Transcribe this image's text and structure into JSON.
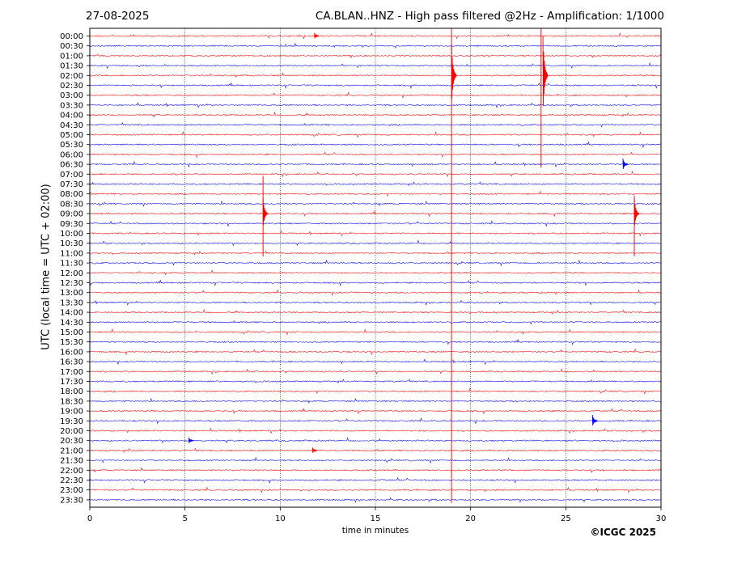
{
  "header": {
    "date": "27-08-2025",
    "title": "CA.BLAN..HNZ - High pass filtered @2Hz - Amplification: 1/1000"
  },
  "copyright": "©ICGC 2025",
  "colors": {
    "even_trace": "#ff0000",
    "odd_trace": "#0000ff",
    "gridline": "#000000"
  },
  "chart_data": {
    "type": "line",
    "title": "CA.BLAN..HNZ - High pass filtered @2Hz - Amplification: 1/1000",
    "xlabel": "time in minutes",
    "ylabel": "UTC (local time = UTC + 02:00)",
    "xlim": [
      0,
      30
    ],
    "x_ticks": [
      0,
      5,
      10,
      15,
      20,
      25,
      30
    ],
    "grid": "vertical dotted at 5-minute intervals",
    "rows": [
      "00:00",
      "00:30",
      "01:00",
      "01:30",
      "02:00",
      "02:30",
      "03:00",
      "03:30",
      "04:00",
      "04:30",
      "05:00",
      "05:30",
      "06:00",
      "06:30",
      "07:00",
      "07:30",
      "08:00",
      "08:30",
      "09:00",
      "09:30",
      "10:00",
      "10:30",
      "11:00",
      "11:30",
      "12:00",
      "12:30",
      "13:00",
      "13:30",
      "14:00",
      "14:30",
      "15:00",
      "15:30",
      "16:00",
      "16:30",
      "17:00",
      "17:30",
      "18:00",
      "18:30",
      "19:00",
      "19:30",
      "20:00",
      "20:30",
      "21:00",
      "21:30",
      "22:00",
      "22:30",
      "23:00",
      "23:30"
    ],
    "row_colors": "alternating red (even rows) and blue (odd rows)",
    "notable_events": [
      {
        "row": "09:00",
        "minute": 9.1,
        "amplitude_rows": 1.5
      },
      {
        "row": "02:00",
        "minute": 19.0,
        "amplitude_rows": 3
      },
      {
        "row": "02:00",
        "minute": 23.8,
        "amplitude_rows": 4
      },
      {
        "row": "06:30",
        "minute": 28.0,
        "amplitude_rows": 0.6
      },
      {
        "row": "09:00",
        "minute": 28.6,
        "amplitude_rows": 1.5
      },
      {
        "row": "19:30",
        "minute": 26.4,
        "amplitude_rows": 0.6
      },
      {
        "row": "21:00",
        "minute": 11.7,
        "amplitude_rows": 0.3
      },
      {
        "row": "20:30",
        "minute": 5.2,
        "amplitude_rows": 0.3
      },
      {
        "row": "00:00",
        "minute": 11.8,
        "amplitude_rows": 0.3
      }
    ],
    "long_spikes": [
      {
        "minute": 19.0,
        "from_row": "00:00",
        "to_row": "23:30"
      },
      {
        "minute": 23.7,
        "from_row": "00:00",
        "to_row": "06:30"
      },
      {
        "minute": 9.1,
        "from_row": "07:30",
        "to_row": "11:00"
      },
      {
        "minute": 28.6,
        "from_row": "08:30",
        "to_row": "11:00"
      }
    ]
  }
}
